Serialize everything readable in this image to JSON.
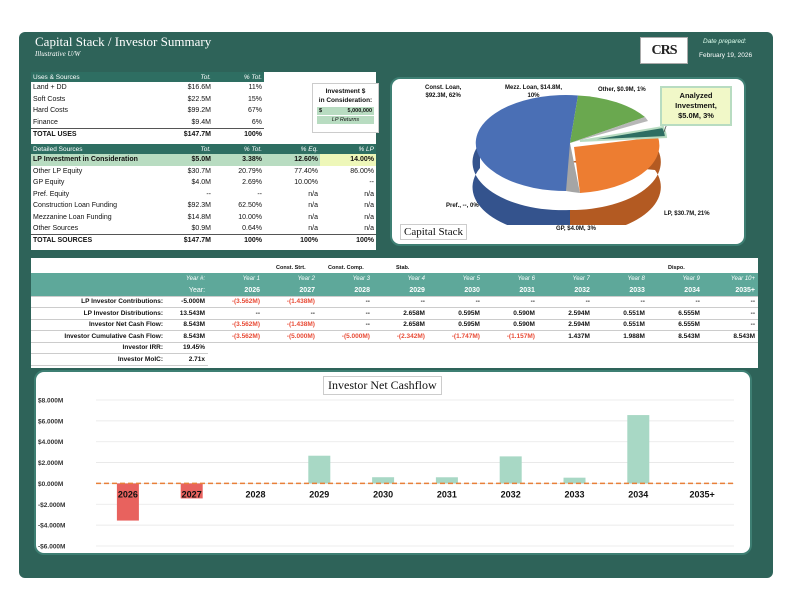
{
  "header": {
    "title": "Capital Stack / Investor Summary",
    "subtitle": "Illustrative U/W",
    "logo_text": "CRS",
    "date_label": "Date prepared:",
    "date_value": "February 19, 2026"
  },
  "uses": {
    "header": [
      "Uses & Sources",
      "Tot.",
      "% Tot."
    ],
    "rows": [
      {
        "label": "Land + DD",
        "tot": "$16.6M",
        "pct": "11%"
      },
      {
        "label": "Soft Costs",
        "tot": "$22.5M",
        "pct": "15%"
      },
      {
        "label": "Hard Costs",
        "tot": "$99.2M",
        "pct": "67%"
      },
      {
        "label": "Finance",
        "tot": "$9.4M",
        "pct": "6%"
      }
    ],
    "total": {
      "label": "TOTAL USES",
      "tot": "$147.7M",
      "pct": "100%"
    }
  },
  "sources": {
    "header": [
      "Detailed Sources",
      "Tot.",
      "% Tot.",
      "% Eq.",
      "% LP"
    ],
    "lp_row": {
      "label": "LP Investment in Consideration",
      "tot": "$5.0M",
      "pct_tot": "3.38%",
      "pct_eq": "12.60%",
      "pct_lp": "14.00%"
    },
    "rows": [
      {
        "label": "Other LP Equity",
        "tot": "$30.7M",
        "pct_tot": "20.79%",
        "pct_eq": "77.40%",
        "pct_lp": "86.00%"
      },
      {
        "label": "GP Equity",
        "tot": "$4.0M",
        "pct_tot": "2.69%",
        "pct_eq": "10.00%",
        "pct_lp": "--"
      },
      {
        "label": "Pref. Equity",
        "tot": "--",
        "pct_tot": "--",
        "pct_eq": "n/a",
        "pct_lp": "n/a"
      },
      {
        "label": "Construction Loan Funding",
        "tot": "$92.3M",
        "pct_tot": "62.50%",
        "pct_eq": "n/a",
        "pct_lp": "n/a"
      },
      {
        "label": "Mezzanine Loan Funding",
        "tot": "$14.8M",
        "pct_tot": "10.00%",
        "pct_eq": "n/a",
        "pct_lp": "n/a"
      },
      {
        "label": "Other Sources",
        "tot": "$0.9M",
        "pct_tot": "0.64%",
        "pct_eq": "n/a",
        "pct_lp": "n/a"
      }
    ],
    "total": {
      "label": "TOTAL SOURCES",
      "tot": "$147.7M",
      "pct_tot": "100%",
      "pct_eq": "100%",
      "pct_lp": "100%"
    }
  },
  "investment_box": {
    "title_line1": "Investment $",
    "title_line2": "in Consideration:",
    "currency": "$",
    "value": "5,000,000",
    "note": "LP Returns"
  },
  "capital_stack": {
    "title": "Capital Stack",
    "callout_line1": "Analyzed",
    "callout_line2": "Investment,",
    "callout_line3": "$5.0M, 3%",
    "labels": {
      "const_loan": [
        "Const. Loan,",
        "$92.3M, 62%"
      ],
      "mezz_loan": [
        "Mezz. Loan, $14.8M,",
        "10%"
      ],
      "other": "Other, $0.9M, 1%",
      "pref": "Pref., --, 0%",
      "gp": "GP, $4.0M, 3%",
      "lp": "LP, $30.7M, 21%"
    },
    "slices": [
      {
        "name": "Const. Loan",
        "value": 92.3,
        "color": "#4a6fb5"
      },
      {
        "name": "Mezz. Loan",
        "value": 14.8,
        "color": "#6aa84f"
      },
      {
        "name": "Other",
        "value": 0.9,
        "color": "#b7b7b7"
      },
      {
        "name": "Analyzed Investment",
        "value": 5.0,
        "color": "#2e6e62"
      },
      {
        "name": "LP",
        "value": 30.7,
        "color": "#ed7d31"
      },
      {
        "name": "GP",
        "value": 4.0,
        "color": "#a5a5a5"
      },
      {
        "name": "Pref.",
        "value": 0,
        "color": "#ffc000"
      }
    ]
  },
  "cashflow": {
    "phases": {
      "const_strt": "Const. Strt.",
      "const_comp": "Const. Comp.",
      "stab": "Stab.",
      "dispo": "Dispo."
    },
    "year_num_label": "Year #:",
    "year_label": "Year:",
    "year_nums": [
      "Year 1",
      "Year 2",
      "Year 3",
      "Year 4",
      "Year 5",
      "Year 6",
      "Year 7",
      "Year 8",
      "Year 9",
      "Year 10+"
    ],
    "years": [
      "2026",
      "2027",
      "2028",
      "2029",
      "2030",
      "2031",
      "2032",
      "2033",
      "2034",
      "2035+"
    ],
    "rows": [
      {
        "label": "LP Investor Contributions:",
        "total": "-5.000M",
        "values": [
          "-(3.562M)",
          "-(1.438M)",
          "--",
          "--",
          "--",
          "--",
          "--",
          "--",
          "--",
          "--"
        ]
      },
      {
        "label": "LP Investor Distributions:",
        "total": "13.543M",
        "values": [
          "--",
          "--",
          "--",
          "2.658M",
          "0.595M",
          "0.590M",
          "2.594M",
          "0.551M",
          "6.555M",
          "--"
        ]
      },
      {
        "label": "Investor Net Cash Flow:",
        "total": "8.543M",
        "values": [
          "-(3.562M)",
          "-(1.438M)",
          "--",
          "2.658M",
          "0.595M",
          "0.590M",
          "2.594M",
          "0.551M",
          "6.555M",
          "--"
        ]
      },
      {
        "label": "Investor Cumulative Cash Flow:",
        "total": "8.543M",
        "values": [
          "-(3.562M)",
          "-(5.000M)",
          "-(5.000M)",
          "-(2.342M)",
          "-(1.747M)",
          "-(1.157M)",
          "1.437M",
          "1.988M",
          "8.543M",
          "8.543M"
        ]
      }
    ],
    "irr_label": "Investor IRR:",
    "irr_value": "19.45%",
    "moic_label": "Investor MoIC:",
    "moic_value": "2.71x"
  },
  "chart_data": {
    "type": "bar",
    "title": "Investor Net Cashflow",
    "categories": [
      "2026",
      "2027",
      "2028",
      "2029",
      "2030",
      "2031",
      "2032",
      "2033",
      "2034",
      "2035+"
    ],
    "values": [
      -3.562,
      -1.438,
      0,
      2.658,
      0.595,
      0.59,
      2.594,
      0.551,
      6.555,
      0
    ],
    "ylim": [
      -6,
      8
    ],
    "yticks": [
      8,
      6,
      4,
      2,
      0,
      -2,
      -4,
      -6
    ],
    "ytick_labels": [
      "$8.000M",
      "$6.000M",
      "$4.000M",
      "$2.000M",
      "$0.000M",
      "-$2.000M",
      "-$4.000M",
      "-$6.000M"
    ],
    "pos_color": "#a8d8c5",
    "neg_color": "#e8625e",
    "zero_line_color": "#e8803a"
  }
}
